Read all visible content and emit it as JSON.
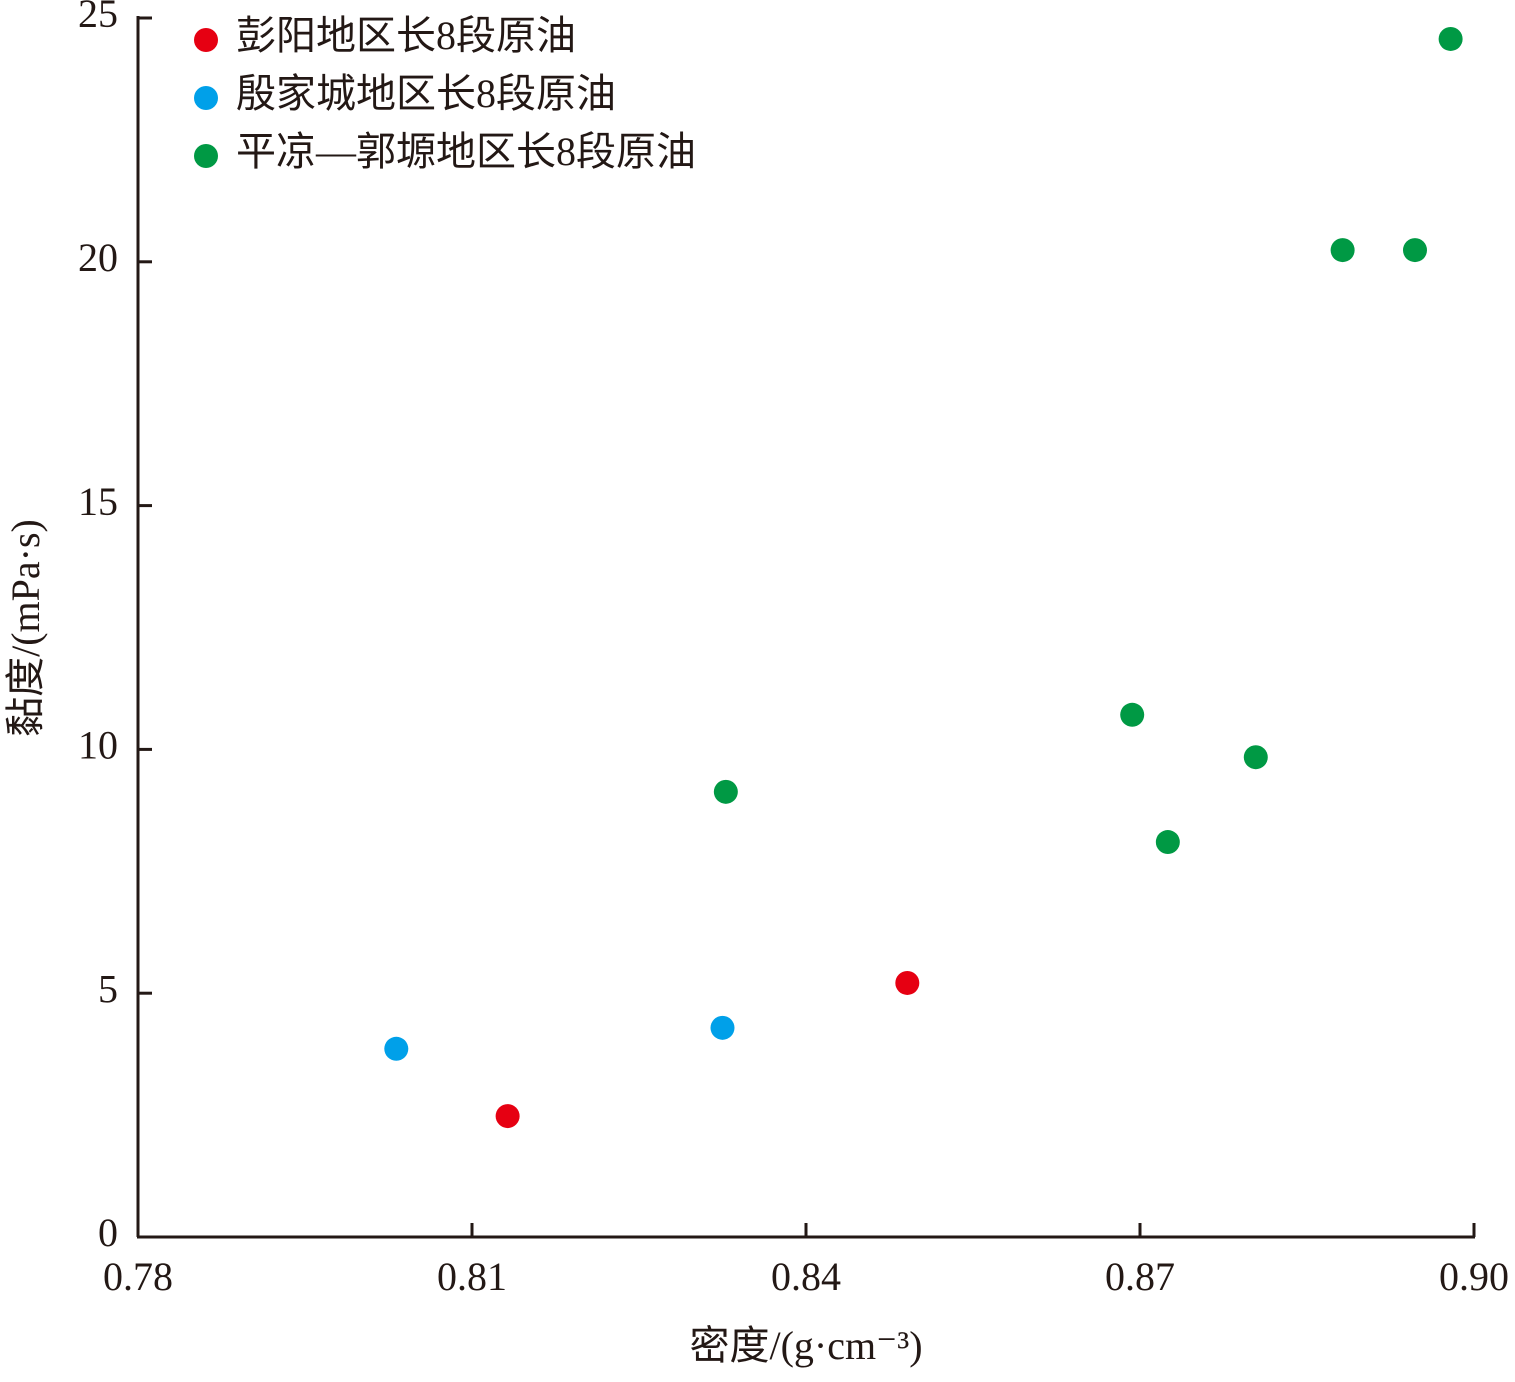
{
  "chart_data": {
    "type": "scatter",
    "x_label": "密度/(g·cm⁻³)",
    "y_label": "黏度/(mPa·s)",
    "xlim": [
      0.78,
      0.9
    ],
    "ylim": [
      0,
      25
    ],
    "xticks": [
      0.78,
      0.81,
      0.84,
      0.87,
      {
        "value": 0.9,
        "label": "0.90"
      }
    ],
    "yticks": [
      0,
      5,
      10,
      15,
      20,
      25
    ],
    "legend": "upper-left",
    "series": [
      {
        "name": "彭阳地区长8段原油",
        "color": "#e60012",
        "x": [
          0.8132,
          0.8491
        ],
        "values": [
          2.48,
          5.21
        ]
      },
      {
        "name": "殷家城地区长8段原油",
        "color": "#00a0e9",
        "x": [
          0.8032,
          0.8325
        ],
        "values": [
          3.86,
          4.29
        ]
      },
      {
        "name": "平凉—郭塬地区长8段原油",
        "color": "#009944",
        "x": [
          0.8328,
          0.8693,
          0.8725,
          0.8804,
          0.8882,
          0.8947,
          0.8979
        ],
        "values": [
          9.13,
          10.71,
          8.1,
          9.84,
          20.24,
          20.24,
          24.57
        ]
      }
    ]
  }
}
